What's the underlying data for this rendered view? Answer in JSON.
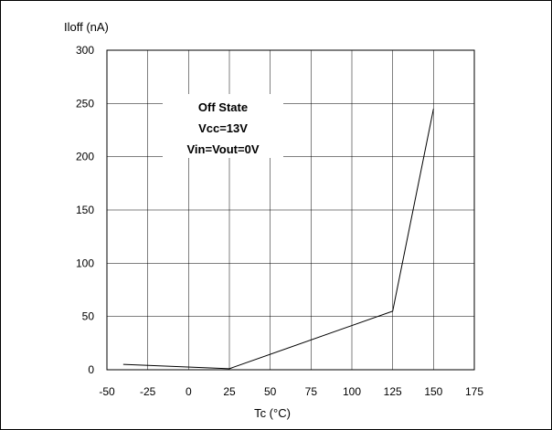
{
  "chart_data": {
    "type": "line",
    "title": "",
    "xlabel": "Tc (°C)",
    "ylabel": "Iloff (nA)",
    "xlim": [
      -50,
      175
    ],
    "ylim": [
      0,
      300
    ],
    "xticks": [
      -50,
      -25,
      0,
      25,
      50,
      75,
      100,
      125,
      150,
      175
    ],
    "yticks": [
      0,
      50,
      100,
      150,
      200,
      250,
      300
    ],
    "grid": true,
    "series": [
      {
        "x": [
          -40,
          25,
          125,
          150
        ],
        "y": [
          5,
          1,
          55,
          245
        ]
      }
    ],
    "annotations": [
      "Off State",
      "Vcc=13V",
      "Vin=Vout=0V"
    ],
    "line_color": "#000000",
    "grid_color": "#000000"
  }
}
